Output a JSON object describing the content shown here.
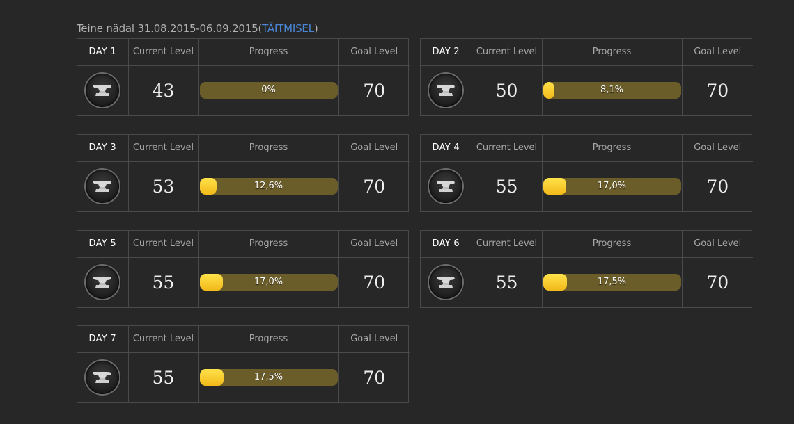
{
  "header": {
    "prefix": "Teine nädal 31.08.2015-06.09.2015(",
    "status_link": "TÄITMISEL",
    "suffix": ")"
  },
  "columns": {
    "current": "Current Level",
    "progress": "Progress",
    "goal": "Goal Level"
  },
  "icon": "anvil-icon",
  "colors": {
    "bar_track": "#6b5d2a",
    "bar_fill": "#f7c823",
    "link": "#4a86d6"
  },
  "days": [
    {
      "label": "DAY 1",
      "current": "43",
      "progress_text": "0%",
      "progress": 0,
      "goal": "70"
    },
    {
      "label": "DAY 2",
      "current": "50",
      "progress_text": "8,1%",
      "progress": 8.1,
      "goal": "70"
    },
    {
      "label": "DAY 3",
      "current": "53",
      "progress_text": "12,6%",
      "progress": 12.6,
      "goal": "70"
    },
    {
      "label": "DAY 4",
      "current": "55",
      "progress_text": "17,0%",
      "progress": 17.0,
      "goal": "70"
    },
    {
      "label": "DAY 5",
      "current": "55",
      "progress_text": "17,0%",
      "progress": 17.0,
      "goal": "70"
    },
    {
      "label": "DAY 6",
      "current": "55",
      "progress_text": "17,5%",
      "progress": 17.5,
      "goal": "70"
    },
    {
      "label": "DAY 7",
      "current": "55",
      "progress_text": "17,5%",
      "progress": 17.5,
      "goal": "70"
    }
  ]
}
